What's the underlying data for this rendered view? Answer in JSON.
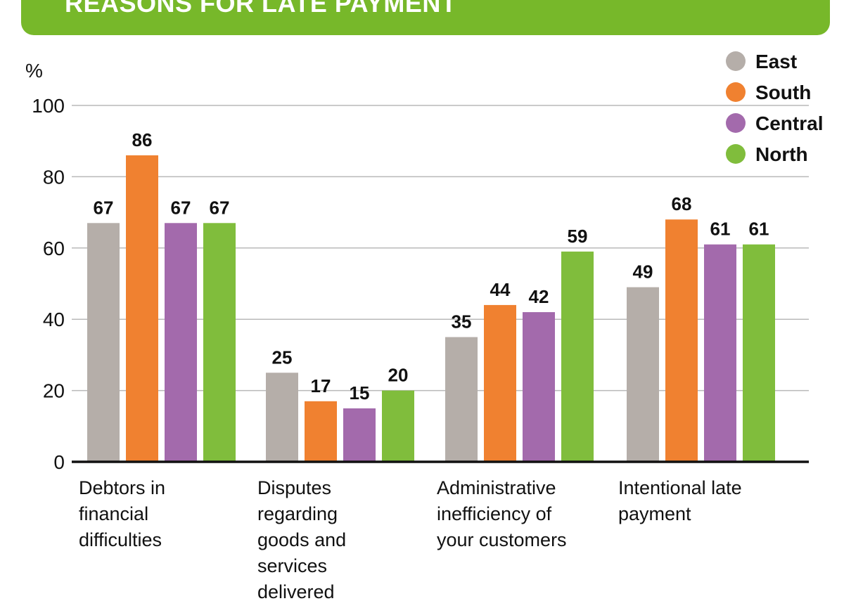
{
  "header": {
    "title": "REASONS FOR LATE PAYMENT"
  },
  "chart_data": {
    "type": "bar",
    "title": "REASONS FOR LATE PAYMENT",
    "ylabel": "%",
    "xlabel": "",
    "ylim": [
      0,
      100
    ],
    "yticks": [
      0,
      20,
      40,
      60,
      80,
      100
    ],
    "grid": true,
    "legend_position": "top-right",
    "categories": [
      [
        "Debtors in",
        "financial",
        "difficulties"
      ],
      [
        "Disputes",
        "regarding",
        "goods and",
        "services",
        "delivered"
      ],
      [
        "Administrative",
        "inefficiency of",
        "your customers"
      ],
      [
        "Intentional late",
        "payment"
      ]
    ],
    "series": [
      {
        "name": "East",
        "color": "#b5aea9",
        "values": [
          67,
          25,
          35,
          49
        ]
      },
      {
        "name": "South",
        "color": "#f08130",
        "values": [
          86,
          17,
          44,
          68
        ]
      },
      {
        "name": "Central",
        "color": "#a36aac",
        "values": [
          67,
          15,
          42,
          61
        ]
      },
      {
        "name": "North",
        "color": "#80bd3c",
        "values": [
          67,
          20,
          59,
          61
        ]
      }
    ]
  }
}
